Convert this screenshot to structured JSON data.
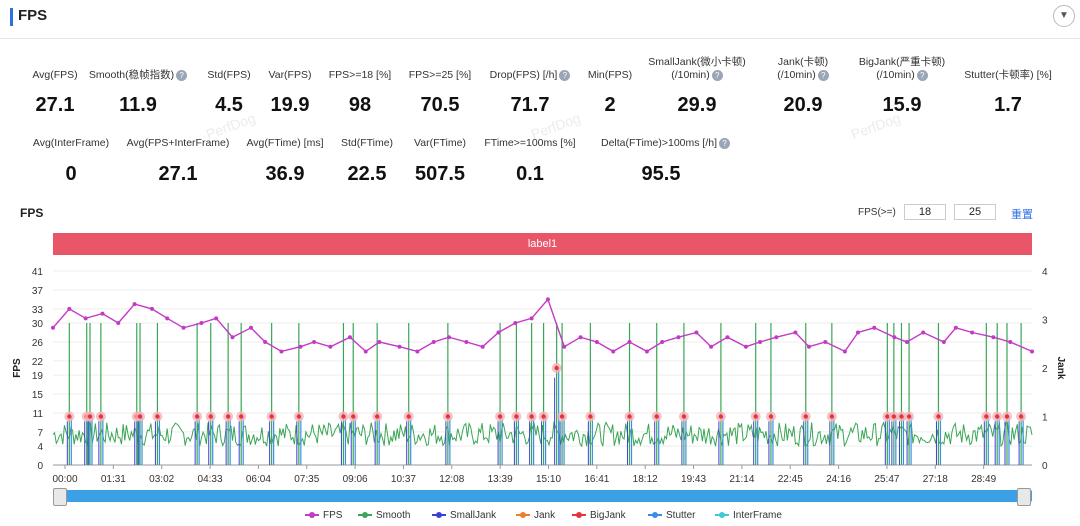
{
  "header": {
    "title": "FPS"
  },
  "stats_row1": [
    {
      "label": "Avg(FPS)",
      "value": "27.1",
      "help": false
    },
    {
      "label": "Smooth(稳帧指数)",
      "value": "11.9",
      "help": true
    },
    {
      "label": "Std(FPS)",
      "value": "4.5",
      "help": false
    },
    {
      "label": "Var(FPS)",
      "value": "19.9",
      "help": false
    },
    {
      "label": "FPS>=18 [%]",
      "value": "98",
      "help": false
    },
    {
      "label": "FPS>=25 [%]",
      "value": "70.5",
      "help": false
    },
    {
      "label": "Drop(FPS) [/h]",
      "value": "71.7",
      "help": true
    },
    {
      "label": "Min(FPS)",
      "value": "2",
      "help": false
    },
    {
      "label": "SmallJank(微小卡顿)",
      "label2": "(/10min)",
      "value": "29.9",
      "help": true
    },
    {
      "label": "Jank(卡顿)",
      "label2": "(/10min)",
      "value": "20.9",
      "help": true
    },
    {
      "label": "BigJank(严重卡顿)",
      "label2": "(/10min)",
      "value": "15.9",
      "help": true
    },
    {
      "label": "Stutter(卡顿率) [%]",
      "value": "1.7",
      "help": false
    }
  ],
  "stats_row2": [
    {
      "label": "Avg(InterFrame)",
      "value": "0",
      "help": false
    },
    {
      "label": "Avg(FPS+InterFrame)",
      "value": "27.1",
      "help": false
    },
    {
      "label": "Avg(FTime) [ms]",
      "value": "36.9",
      "help": false
    },
    {
      "label": "Std(FTime)",
      "value": "22.5",
      "help": false
    },
    {
      "label": "Var(FTime)",
      "value": "507.5",
      "help": false
    },
    {
      "label": "FTime>=100ms [%]",
      "value": "0.1",
      "help": false
    },
    {
      "label": "Delta(FTime)>100ms [/h]",
      "value": "95.5",
      "help": true
    }
  ],
  "chart_section": {
    "title": "FPS",
    "threshold_label": "FPS(>=)",
    "threshold_low": "18",
    "threshold_high": "25",
    "reset_label": "重置",
    "label_bar": "label1"
  },
  "colors": {
    "fps": "#c33ac5",
    "smooth": "#3aa655",
    "smalljank": "#3b3fd8",
    "jank": "#f07d2a",
    "bigjank": "#e5333f",
    "stutter": "#3a8ee6",
    "interframe": "#3ec9d6",
    "label_bar": "#e9566a"
  },
  "chart_data": {
    "type": "line",
    "title": "FPS",
    "ylabel": "FPS",
    "y2label": "Jank",
    "ylim": [
      0,
      41
    ],
    "y2lim": [
      0,
      4
    ],
    "yticks": [
      0,
      4,
      7,
      11,
      15,
      19,
      22,
      26,
      30,
      33,
      37,
      41
    ],
    "y2ticks": [
      0,
      1,
      2,
      3,
      4
    ],
    "xticks": [
      "00:00",
      "01:31",
      "03:02",
      "04:33",
      "06:04",
      "07:35",
      "09:06",
      "10:37",
      "12:08",
      "13:39",
      "15:10",
      "16:41",
      "18:12",
      "19:43",
      "21:14",
      "22:45",
      "24:16",
      "25:47",
      "27:18",
      "28:49"
    ],
    "duration_seconds": 1800,
    "legend": [
      "FPS",
      "Smooth",
      "SmallJank",
      "Jank",
      "BigJank",
      "Stutter",
      "InterFrame"
    ],
    "fps_series_seconds": [
      0,
      30,
      60,
      91,
      120,
      150,
      182,
      210,
      240,
      273,
      300,
      330,
      364,
      390,
      420,
      455,
      480,
      510,
      546,
      575,
      600,
      637,
      670,
      700,
      728,
      760,
      790,
      819,
      850,
      880,
      910,
      940,
      970,
      1000,
      1030,
      1060,
      1092,
      1120,
      1150,
      1183,
      1210,
      1240,
      1274,
      1300,
      1330,
      1365,
      1390,
      1420,
      1456,
      1480,
      1510,
      1547,
      1570,
      1600,
      1638,
      1660,
      1690,
      1729,
      1760,
      1800
    ],
    "fps_series": [
      29,
      33,
      31,
      32,
      30,
      34,
      33,
      31,
      29,
      30,
      31,
      27,
      29,
      26,
      24,
      25,
      26,
      25,
      27,
      24,
      26,
      25,
      24,
      26,
      27,
      26,
      25,
      28,
      30,
      31,
      35,
      25,
      27,
      26,
      24,
      26,
      24,
      26,
      27,
      28,
      25,
      27,
      25,
      26,
      27,
      28,
      25,
      26,
      24,
      28,
      29,
      27,
      26,
      28,
      26,
      29,
      28,
      27,
      26,
      24
    ],
    "smooth_baseline_range": [
      4,
      9
    ],
    "bigjank_points": [
      {
        "t": 30,
        "jank": 1
      },
      {
        "t": 62,
        "jank": 1
      },
      {
        "t": 68,
        "jank": 1
      },
      {
        "t": 88,
        "jank": 1
      },
      {
        "t": 154,
        "jank": 1
      },
      {
        "t": 160,
        "jank": 1
      },
      {
        "t": 192,
        "jank": 1
      },
      {
        "t": 265,
        "jank": 1
      },
      {
        "t": 290,
        "jank": 1
      },
      {
        "t": 322,
        "jank": 1
      },
      {
        "t": 346,
        "jank": 1
      },
      {
        "t": 402,
        "jank": 1
      },
      {
        "t": 452,
        "jank": 1
      },
      {
        "t": 534,
        "jank": 1
      },
      {
        "t": 552,
        "jank": 1
      },
      {
        "t": 596,
        "jank": 1
      },
      {
        "t": 654,
        "jank": 1
      },
      {
        "t": 726,
        "jank": 1
      },
      {
        "t": 822,
        "jank": 1
      },
      {
        "t": 852,
        "jank": 1
      },
      {
        "t": 880,
        "jank": 1
      },
      {
        "t": 902,
        "jank": 1
      },
      {
        "t": 936,
        "jank": 1
      },
      {
        "t": 926,
        "jank": 2
      },
      {
        "t": 988,
        "jank": 1
      },
      {
        "t": 1060,
        "jank": 1
      },
      {
        "t": 1110,
        "jank": 1
      },
      {
        "t": 1160,
        "jank": 1
      },
      {
        "t": 1228,
        "jank": 1
      },
      {
        "t": 1292,
        "jank": 1
      },
      {
        "t": 1320,
        "jank": 1
      },
      {
        "t": 1384,
        "jank": 1
      },
      {
        "t": 1432,
        "jank": 1
      },
      {
        "t": 1534,
        "jank": 1
      },
      {
        "t": 1546,
        "jank": 1
      },
      {
        "t": 1560,
        "jank": 1
      },
      {
        "t": 1574,
        "jank": 1
      },
      {
        "t": 1628,
        "jank": 1
      },
      {
        "t": 1716,
        "jank": 1
      },
      {
        "t": 1736,
        "jank": 1
      },
      {
        "t": 1754,
        "jank": 1
      },
      {
        "t": 1780,
        "jank": 1
      }
    ]
  },
  "slider": {
    "start": "00:00",
    "end": "28:49"
  }
}
